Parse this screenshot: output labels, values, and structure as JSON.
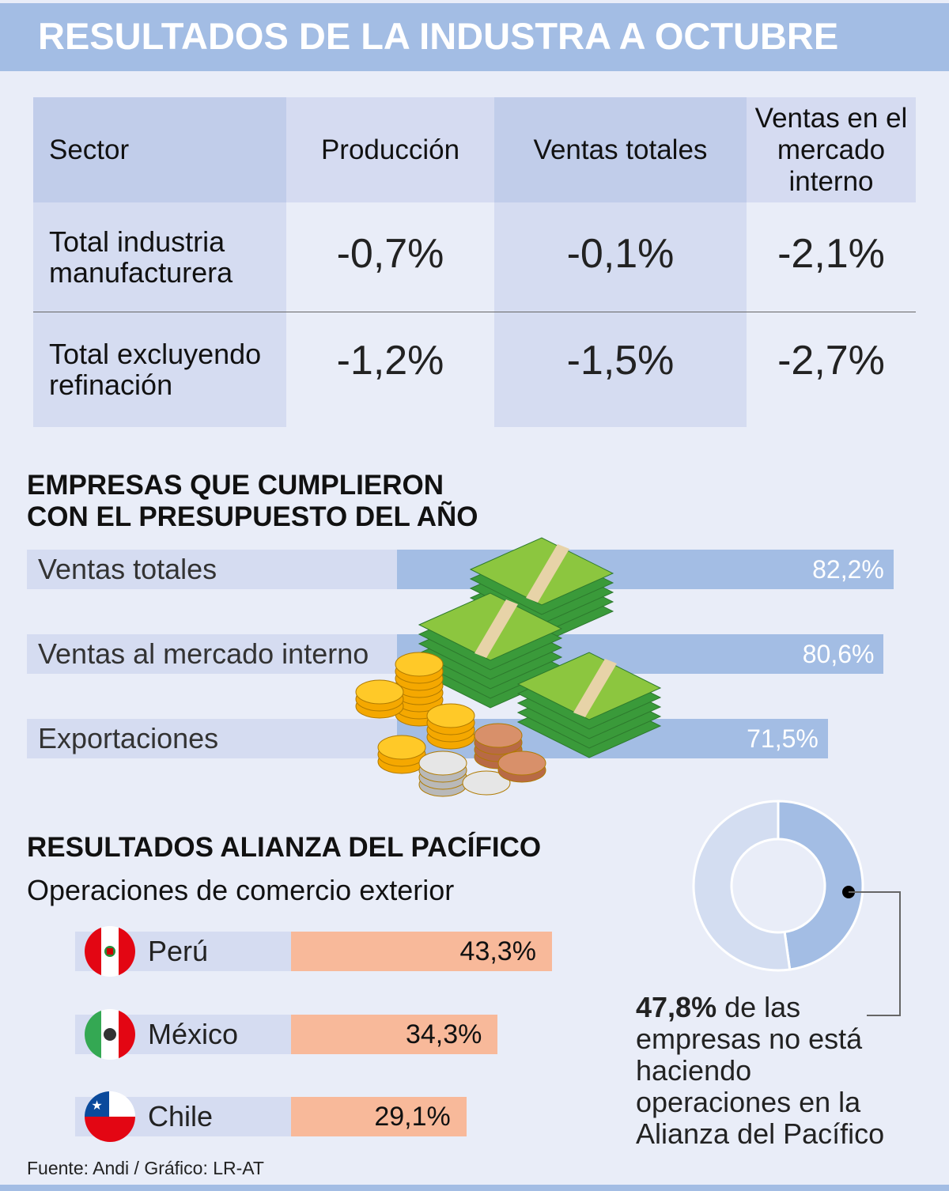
{
  "title": "RESULTADOS DE LA INDUSTRA A OCTUBRE",
  "table": {
    "headers": [
      "Sector",
      "Producción",
      "Ventas totales",
      "Ventas en el mercado interno"
    ],
    "rows": [
      {
        "sector": "Total industria manufacturera",
        "values": [
          "-0,7%",
          "-0,1%",
          "-2,1%"
        ]
      },
      {
        "sector": "Total excluyendo refinación",
        "values": [
          "-1,2%",
          "-1,5%",
          "-2,7%"
        ]
      }
    ]
  },
  "chart_data": [
    {
      "type": "bar",
      "title": "EMPRESAS QUE CUMPLIERON CON EL PRESUPUESTO DEL AÑO",
      "categories": [
        "Ventas totales",
        "Ventas al mercado interno",
        "Exportaciones"
      ],
      "values": [
        82.2,
        80.6,
        71.5
      ],
      "labels": [
        "82,2%",
        "80,6%",
        "71,5%"
      ],
      "color": "#a3bde4"
    },
    {
      "type": "bar",
      "title": "RESULTADOS ALIANZA DEL PACÍFICO",
      "subtitle": "Operaciones de comercio exterior",
      "categories": [
        "Perú",
        "México",
        "Chile"
      ],
      "values": [
        43.3,
        34.3,
        29.1
      ],
      "labels": [
        "43,3%",
        "34,3%",
        "29,1%"
      ],
      "icons": [
        "peru-flag-icon",
        "mexico-flag-icon",
        "chile-flag-icon"
      ],
      "color": "#f8b99a"
    },
    {
      "type": "pie",
      "values": [
        47.8,
        52.2
      ],
      "colors": [
        "#a3bde4",
        "#d3ddf1"
      ],
      "annotation_bold": "47,8%",
      "annotation": " de las empresas no está haciendo operaciones en la Alianza del Pacífico"
    }
  ],
  "source": "Fuente: Andi / Gráfico: LR-AT"
}
